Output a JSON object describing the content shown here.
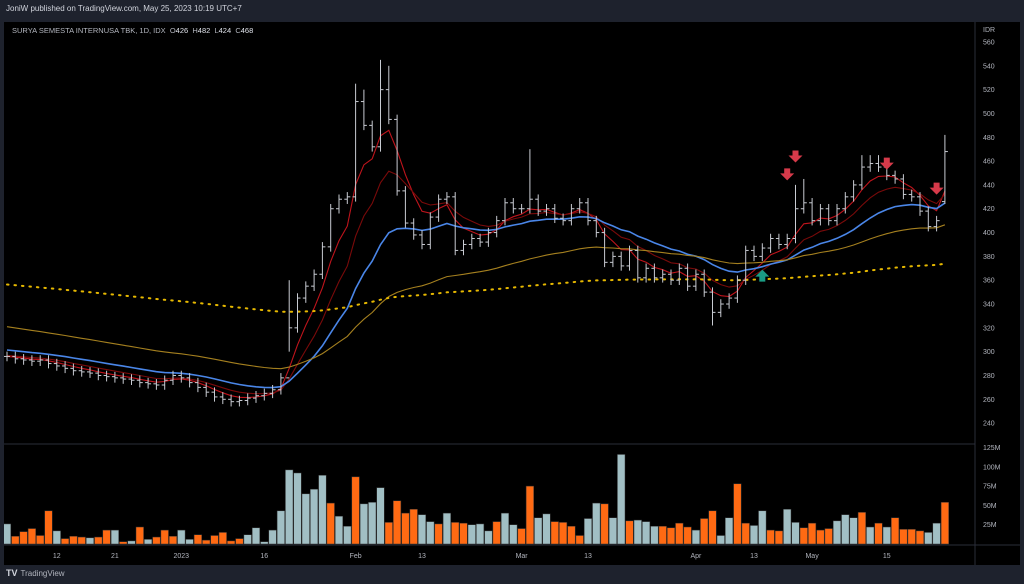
{
  "header": {
    "published": "JoniW published on TradingView.com, May 25, 2023 10:19 UTC+7"
  },
  "legend": {
    "symbol": "SURYA SEMESTA INTERNUSA TBK, 1D, IDX",
    "o_label": "O",
    "o": "426",
    "h_label": "H",
    "h": "482",
    "l_label": "L",
    "l": "424",
    "c_label": "C",
    "c": "468"
  },
  "footer": {
    "logo": "TV",
    "brand": "TradingView"
  },
  "colors": {
    "up_volume": "#a1bfc4",
    "down_volume": "#ff6a13",
    "bars": "#c8cbd2",
    "signal_down": "#d63a4a",
    "signal_up": "#1a9c84"
  },
  "chart_data": {
    "type": "ohlc",
    "currency": "IDR",
    "price_ticks": [
      560,
      540,
      520,
      500,
      480,
      460,
      440,
      420,
      400,
      380,
      360,
      340,
      320,
      300,
      280,
      260,
      240
    ],
    "volume_ticks": [
      "125M",
      "100M",
      "75M",
      "50M",
      "25M"
    ],
    "volume_tick_values": [
      125,
      100,
      75,
      50,
      25
    ],
    "time_ticks": [
      {
        "label": "12",
        "bar": 6
      },
      {
        "label": "21",
        "bar": 13
      },
      {
        "label": "2023",
        "bar": 21
      },
      {
        "label": "16",
        "bar": 31
      },
      {
        "label": "Feb",
        "bar": 42
      },
      {
        "label": "13",
        "bar": 50
      },
      {
        "label": "Mar",
        "bar": 62
      },
      {
        "label": "13",
        "bar": 70
      },
      {
        "label": "Apr",
        "bar": 83
      },
      {
        "label": "13",
        "bar": 90
      },
      {
        "label": "May",
        "bar": 97
      },
      {
        "label": "15",
        "bar": 106
      }
    ],
    "close": [
      296,
      294,
      293,
      292,
      293,
      290,
      288,
      286,
      284,
      283,
      282,
      280,
      279,
      278,
      277,
      276,
      274,
      273,
      272,
      276,
      280,
      278,
      274,
      270,
      266,
      262,
      260,
      258,
      259,
      261,
      263,
      265,
      268,
      278,
      320,
      345,
      355,
      365,
      388,
      420,
      428,
      430,
      510,
      490,
      472,
      520,
      495,
      435,
      408,
      398,
      390,
      413,
      428,
      430,
      385,
      390,
      395,
      392,
      400,
      410,
      425,
      420,
      420,
      428,
      418,
      420,
      412,
      410,
      420,
      425,
      410,
      400,
      375,
      380,
      372,
      385,
      362,
      370,
      362,
      365,
      360,
      370,
      355,
      365,
      350,
      333,
      340,
      345,
      360,
      385,
      380,
      387,
      395,
      390,
      395,
      420,
      425,
      410,
      420,
      410,
      420,
      430,
      440,
      455,
      458,
      455,
      448,
      445,
      432,
      430,
      418,
      405,
      410,
      468
    ],
    "high_overrides": {
      "34": 360,
      "42": 525,
      "43": 520,
      "45": 545,
      "46": 540,
      "63": 470,
      "95": 440,
      "96": 445,
      "103": 465,
      "104": 465,
      "105": 465,
      "113": 482
    },
    "low_overrides": {
      "34": 300,
      "85": 322,
      "113": 424
    },
    "open_overrides": {
      "113": 426
    },
    "volume_millions": [
      26,
      10,
      16,
      20,
      11,
      43,
      17,
      7,
      10,
      9,
      8,
      9,
      18,
      18,
      3,
      4,
      22,
      6,
      9,
      18,
      10,
      18,
      6,
      12,
      5,
      11,
      15,
      4,
      7,
      12,
      21,
      3,
      18,
      43,
      96,
      92,
      65,
      71,
      89,
      53,
      36,
      23,
      87,
      52,
      54,
      73,
      28,
      56,
      40,
      45,
      38,
      29,
      26,
      40,
      28,
      27,
      25,
      26,
      17,
      29,
      40,
      25,
      20,
      75,
      34,
      39,
      29,
      28,
      23,
      11,
      33,
      53,
      52,
      34,
      116,
      30,
      31,
      29,
      23,
      23,
      21,
      27,
      22,
      18,
      33,
      43,
      11,
      34,
      78,
      27,
      24,
      43,
      18,
      17,
      45,
      28,
      21,
      27,
      18,
      20,
      30,
      38,
      34,
      41,
      22,
      27,
      22,
      34,
      19,
      19,
      17,
      15,
      27,
      54
    ],
    "volume_direction": "uddddduddduddudududdduudddddduuuuuuuuuudu u duuudddduudu dduuuduudduudddduuduuduuuddddudduudduudduudddduuudududddduu",
    "price_range": [
      230,
      565
    ],
    "volume_range": [
      0,
      130
    ],
    "indicators": [
      {
        "name": "EMA fast",
        "period": 5,
        "seed": 296,
        "color": "#c0141c",
        "style": "solid"
      },
      {
        "name": "EMA slow",
        "period": 10,
        "seed": 297,
        "color": "#7a0a0a",
        "style": "solid"
      },
      {
        "name": "MA 20",
        "period": 20,
        "seed": 302,
        "color": "#4a86e8",
        "style": "solid"
      },
      {
        "name": "MA 50",
        "period": 50,
        "seed": 322,
        "color": "#a5801f",
        "style": "solid"
      },
      {
        "name": "MA 200",
        "period": 200,
        "seed": 357,
        "color": "#e6b800",
        "style": "dotted"
      }
    ],
    "signals": [
      {
        "bar": 94,
        "price": 448,
        "type": "down"
      },
      {
        "bar": 95,
        "price": 463,
        "type": "down"
      },
      {
        "bar": 106,
        "price": 457,
        "type": "down"
      },
      {
        "bar": 112,
        "price": 436,
        "type": "down"
      },
      {
        "bar": 91,
        "price": 363,
        "type": "up"
      }
    ]
  }
}
